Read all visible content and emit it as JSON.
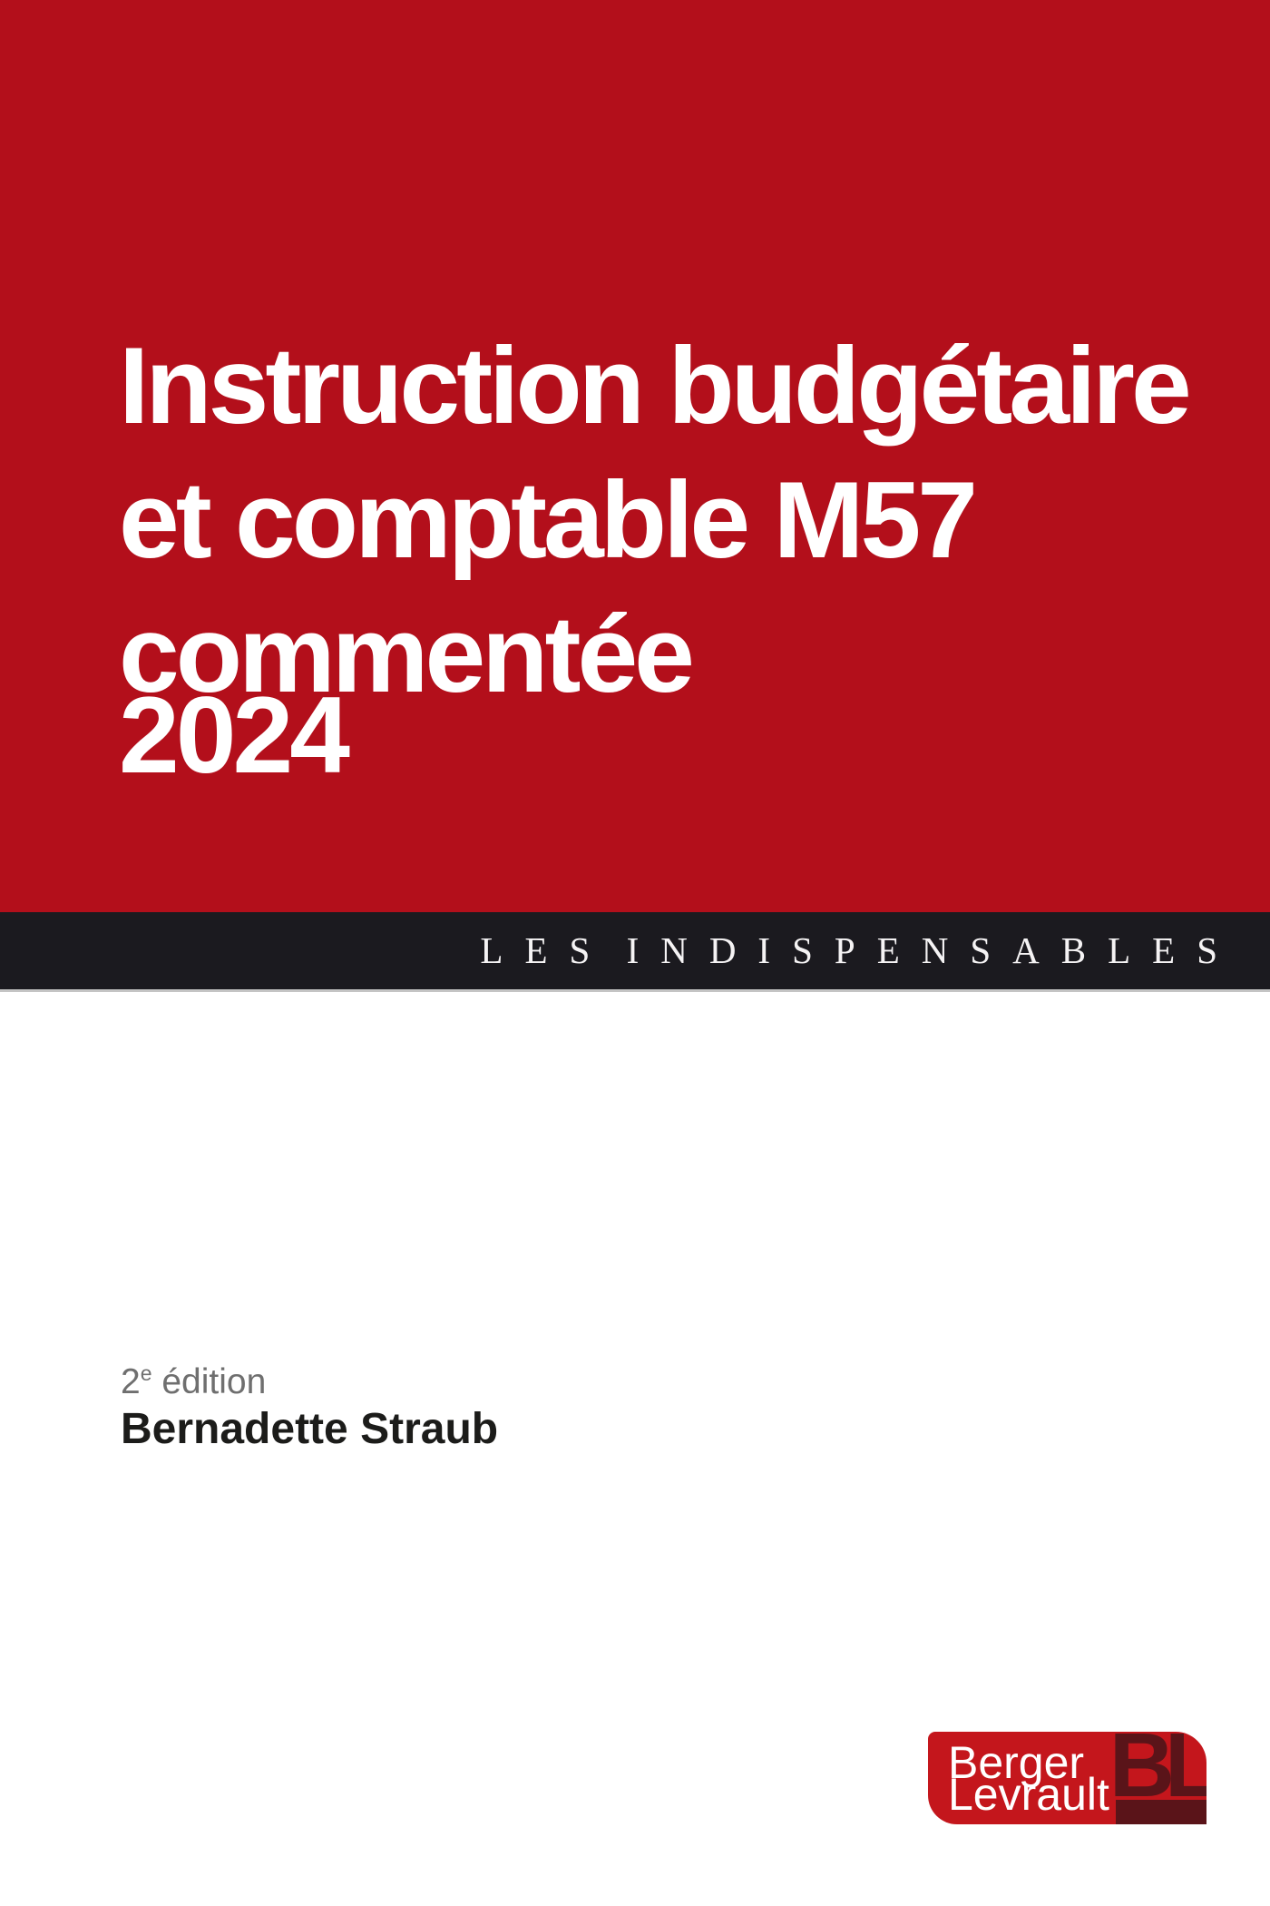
{
  "colors": {
    "cover_red": "#b30f1b",
    "band_black": "#1b1a1f",
    "collection_text": "#f5f3f4",
    "title_white": "#ffffff",
    "edition_gray": "#6f6f6f",
    "name_black": "#1c1c1a",
    "logo_red": "#c4161c",
    "logo_dark": "#5a1419"
  },
  "cover": {
    "title_lines": [
      "Instruction budgétaire",
      "et comptable M57",
      "commentée"
    ],
    "year": "2024"
  },
  "collection": {
    "label": "LES INDISPENSABLES"
  },
  "author": {
    "edition_number": "2",
    "edition_suffix": "e",
    "edition_word": "édition",
    "name": "Bernadette Straub"
  },
  "publisher": {
    "name_line1": "Berger",
    "name_line2": "Levrault",
    "monogram": "BL"
  }
}
